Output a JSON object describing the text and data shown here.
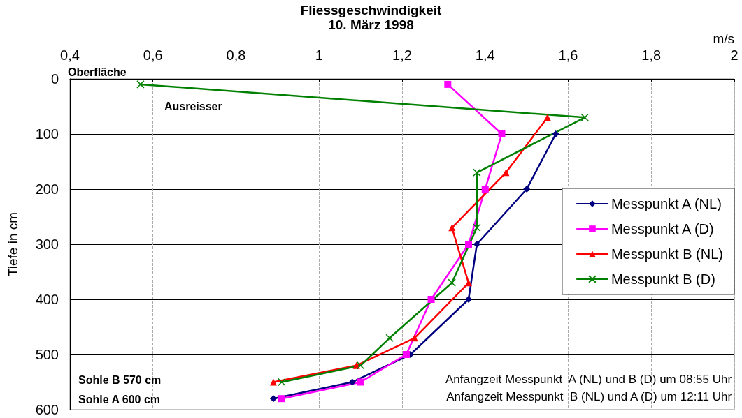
{
  "chart_data": {
    "type": "line",
    "title": "Fliessgeschwindigkeit",
    "subtitle": "10. März 1998",
    "xlabel": "m/s",
    "ylabel": "Tiefe in cm",
    "series": [
      {
        "name": "Messpunkt A (NL)",
        "color": "#000080",
        "marker": "diamond",
        "x": [
          1.57,
          1.5,
          1.38,
          1.36,
          1.22,
          1.08,
          0.89
        ],
        "values": [
          100,
          200,
          300,
          400,
          500,
          550,
          580
        ]
      },
      {
        "name": "Messpunkt A (D)",
        "color": "#ff00ff",
        "marker": "square",
        "x": [
          1.31,
          1.44,
          1.4,
          1.36,
          1.27,
          1.21,
          1.1,
          0.91
        ],
        "values": [
          10,
          100,
          200,
          300,
          400,
          500,
          550,
          580
        ]
      },
      {
        "name": "Messpunkt B (NL)",
        "color": "#ff0000",
        "marker": "triangle",
        "x": [
          1.55,
          1.45,
          1.32,
          1.36,
          1.23,
          1.09,
          0.89
        ],
        "values": [
          70,
          170,
          270,
          370,
          470,
          520,
          550
        ]
      },
      {
        "name": "Messpunkt B (D)",
        "color": "#008000",
        "marker": "cross",
        "x": [
          0.57,
          1.64,
          1.38,
          1.38,
          1.32,
          1.17,
          1.1,
          0.91
        ],
        "values": [
          10,
          70,
          170,
          270,
          370,
          470,
          520,
          550
        ]
      }
    ],
    "xlim": [
      0.4,
      2
    ],
    "xticks": [
      {
        "value": 0.4,
        "label": "0,4"
      },
      {
        "value": 0.6,
        "label": "0,6"
      },
      {
        "value": 0.8,
        "label": "0,8"
      },
      1,
      {
        "value": 1.2,
        "label": "1,2"
      },
      {
        "value": 1.4,
        "label": "1,4"
      },
      {
        "value": 1.6,
        "label": "1,6"
      },
      {
        "value": 1.8,
        "label": "1,8"
      },
      2
    ],
    "ylim": [
      600,
      0
    ],
    "yticks": [
      0,
      100,
      200,
      300,
      400,
      500,
      600
    ],
    "grid": true,
    "legend": "right",
    "line_style": "solid",
    "annotations": [
      "Oberfläche",
      "Ausreisser",
      "Sohle B 570 cm",
      "Sohle A 600 cm",
      "Anfangzeit Messpunkt  A (NL) und B (D) um 08:55 Uhr",
      "Anfangzeit Messpunkt  B (NL) und A (D) um 12:11 Uhr"
    ]
  }
}
